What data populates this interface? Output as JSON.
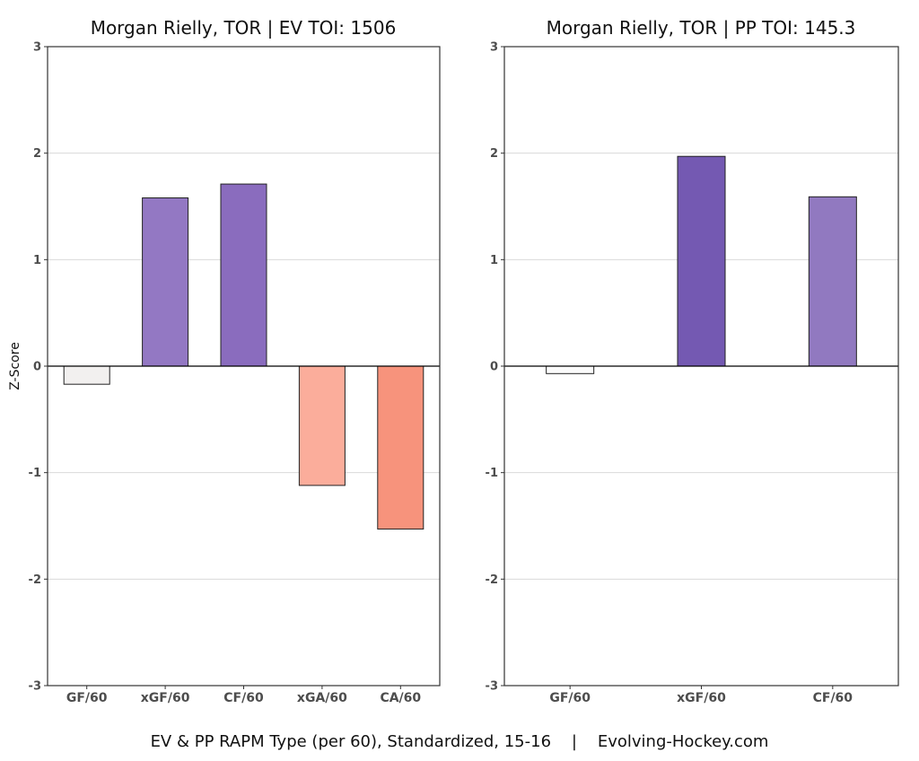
{
  "caption": "EV & PP RAPM Type (per 60), Standardized, 15-16    |    Evolving-Hockey.com",
  "chart_data": [
    {
      "type": "bar",
      "title": "Morgan Rielly, TOR  |  EV TOI: 1506",
      "ylabel": "Z-Score",
      "xlabel": "",
      "ylim": [
        -3,
        3
      ],
      "yticks": [
        3,
        2,
        1,
        0,
        -1,
        -2,
        -3
      ],
      "grid": true,
      "categories": [
        "GF/60",
        "xGF/60",
        "CF/60",
        "xGA/60",
        "CA/60"
      ],
      "values": [
        -0.17,
        1.58,
        1.71,
        -1.12,
        -1.53
      ],
      "colors": [
        "#f2f0ef",
        "#9378c3",
        "#8a6cbe",
        "#fbad9b",
        "#f7937c"
      ]
    },
    {
      "type": "bar",
      "title": "Morgan Rielly, TOR  |  PP TOI: 145.3",
      "ylabel": "",
      "xlabel": "",
      "ylim": [
        -3,
        3
      ],
      "yticks": [
        3,
        2,
        1,
        0,
        -1,
        -2,
        -3
      ],
      "grid": true,
      "categories": [
        "GF/60",
        "xGF/60",
        "CF/60"
      ],
      "values": [
        -0.07,
        1.97,
        1.59
      ],
      "colors": [
        "#fbfbfb",
        "#7459b2",
        "#9179c0"
      ]
    }
  ]
}
